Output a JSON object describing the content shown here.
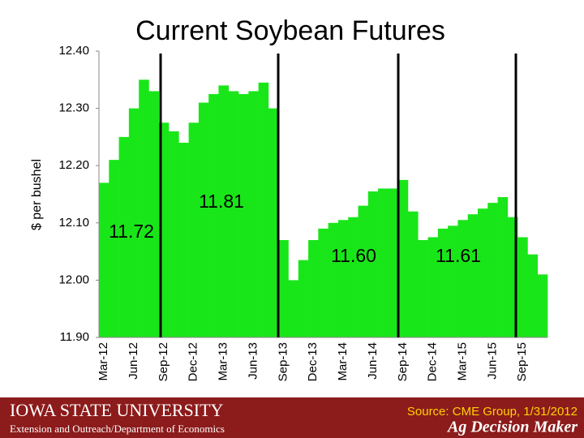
{
  "chart_data": {
    "type": "bar",
    "title": "Current Soybean Futures",
    "y_label": "$ per bushel",
    "color": "#19e619",
    "categories": [
      "Mar-12",
      null,
      null,
      "Jun-12",
      null,
      null,
      "Sep-12",
      null,
      null,
      "Dec-12",
      null,
      null,
      "Mar-13",
      null,
      null,
      "Jun-13",
      null,
      null,
      "Sep-13",
      null,
      null,
      "Dec-13",
      null,
      null,
      "Mar-14",
      null,
      null,
      "Jun-14",
      null,
      null,
      "Sep-14",
      null,
      null,
      "Dec-14",
      null,
      null,
      "Mar-15",
      null,
      null,
      "Jun-15",
      null,
      null,
      "Sep-15",
      null,
      null
    ],
    "values": [
      12.17,
      12.21,
      12.25,
      12.3,
      12.35,
      12.33,
      12.275,
      12.26,
      12.24,
      12.275,
      12.31,
      12.325,
      12.34,
      12.33,
      12.325,
      12.33,
      12.345,
      12.3,
      12.07,
      12.0,
      12.035,
      12.07,
      12.09,
      12.1,
      12.105,
      12.11,
      12.13,
      12.155,
      12.16,
      12.16,
      12.175,
      12.12,
      12.07,
      12.075,
      12.09,
      12.095,
      12.105,
      12.115,
      12.125,
      12.135,
      12.145,
      12.11,
      12.075,
      12.045,
      12.01
    ],
    "ylim": [
      11.9,
      12.4
    ],
    "yticks": [
      {
        "value": 11.9,
        "label": "11.90"
      },
      {
        "value": 12.0,
        "label": "12.00"
      },
      {
        "value": 12.1,
        "label": "12.10"
      },
      {
        "value": 12.2,
        "label": "12.20"
      },
      {
        "value": 12.3,
        "label": "12.30"
      },
      {
        "value": 12.4,
        "label": "12.40"
      }
    ],
    "annotations": [
      "11.72",
      "11.81",
      "11.60",
      "11.61"
    ],
    "grid": false
  },
  "footer": {
    "university": "Iowa State University",
    "department": "Extension and Outreach/Department of Economics",
    "source": "Source: CME Group, 1/31/2012",
    "brand": "Ag Decision Maker"
  }
}
